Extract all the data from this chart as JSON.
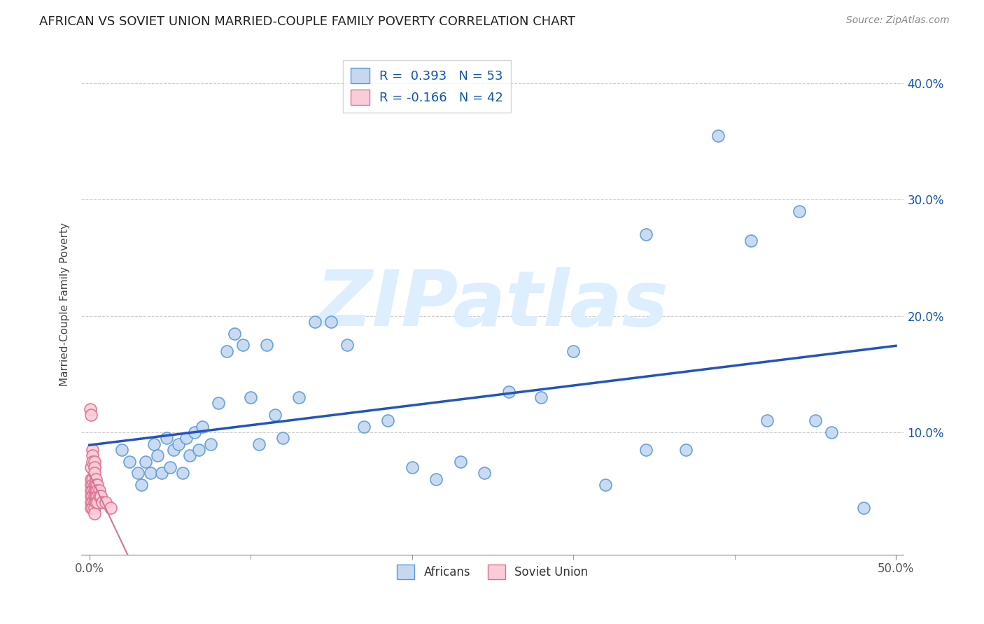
{
  "title": "AFRICAN VS SOVIET UNION MARRIED-COUPLE FAMILY POVERTY CORRELATION CHART",
  "source": "Source: ZipAtlas.com",
  "ylabel": "Married-Couple Family Poverty",
  "xlim": [
    -0.005,
    0.505
  ],
  "ylim": [
    -0.005,
    0.425
  ],
  "yticks": [
    0.1,
    0.2,
    0.3,
    0.4
  ],
  "yticklabels": [
    "10.0%",
    "20.0%",
    "30.0%",
    "40.0%"
  ],
  "africans_x": [
    0.02,
    0.025,
    0.03,
    0.032,
    0.035,
    0.038,
    0.04,
    0.042,
    0.045,
    0.048,
    0.05,
    0.052,
    0.055,
    0.058,
    0.06,
    0.062,
    0.065,
    0.068,
    0.07,
    0.075,
    0.08,
    0.085,
    0.09,
    0.095,
    0.1,
    0.105,
    0.11,
    0.115,
    0.12,
    0.13,
    0.14,
    0.15,
    0.16,
    0.17,
    0.185,
    0.2,
    0.215,
    0.23,
    0.245,
    0.26,
    0.28,
    0.3,
    0.32,
    0.345,
    0.37,
    0.39,
    0.42,
    0.44,
    0.46,
    0.345,
    0.41,
    0.45,
    0.48
  ],
  "africans_y": [
    0.085,
    0.075,
    0.065,
    0.055,
    0.075,
    0.065,
    0.09,
    0.08,
    0.065,
    0.095,
    0.07,
    0.085,
    0.09,
    0.065,
    0.095,
    0.08,
    0.1,
    0.085,
    0.105,
    0.09,
    0.125,
    0.17,
    0.185,
    0.175,
    0.13,
    0.09,
    0.175,
    0.115,
    0.095,
    0.13,
    0.195,
    0.195,
    0.175,
    0.105,
    0.11,
    0.07,
    0.06,
    0.075,
    0.065,
    0.135,
    0.13,
    0.17,
    0.055,
    0.085,
    0.085,
    0.355,
    0.11,
    0.29,
    0.1,
    0.27,
    0.265,
    0.11,
    0.035
  ],
  "soviet_x": [
    0.0005,
    0.001,
    0.001,
    0.001,
    0.001,
    0.001,
    0.001,
    0.001,
    0.001,
    0.002,
    0.002,
    0.002,
    0.002,
    0.002,
    0.002,
    0.002,
    0.002,
    0.002,
    0.003,
    0.003,
    0.003,
    0.003,
    0.003,
    0.003,
    0.003,
    0.003,
    0.003,
    0.004,
    0.004,
    0.004,
    0.004,
    0.004,
    0.005,
    0.005,
    0.005,
    0.005,
    0.006,
    0.006,
    0.007,
    0.008,
    0.01,
    0.013
  ],
  "soviet_y": [
    0.12,
    0.115,
    0.055,
    0.05,
    0.045,
    0.04,
    0.035,
    0.06,
    0.07,
    0.085,
    0.08,
    0.075,
    0.06,
    0.055,
    0.05,
    0.045,
    0.04,
    0.035,
    0.075,
    0.07,
    0.065,
    0.055,
    0.05,
    0.045,
    0.04,
    0.035,
    0.03,
    0.06,
    0.055,
    0.05,
    0.045,
    0.04,
    0.055,
    0.05,
    0.045,
    0.04,
    0.05,
    0.045,
    0.045,
    0.04,
    0.04,
    0.035
  ],
  "african_R": 0.393,
  "african_N": 53,
  "soviet_R": -0.166,
  "soviet_N": 42,
  "african_fill": "#c5d8f0",
  "african_edge": "#5b9bd5",
  "soviet_fill": "#f9cdd8",
  "soviet_edge": "#e07090",
  "african_line_color": "#2255bb",
  "soviet_line_color": "#cc7799",
  "watermark_color": "#ddeeff",
  "background_color": "#ffffff",
  "grid_color": "#cccccc",
  "tick_color": "#555555",
  "label_color": "#1155aa"
}
